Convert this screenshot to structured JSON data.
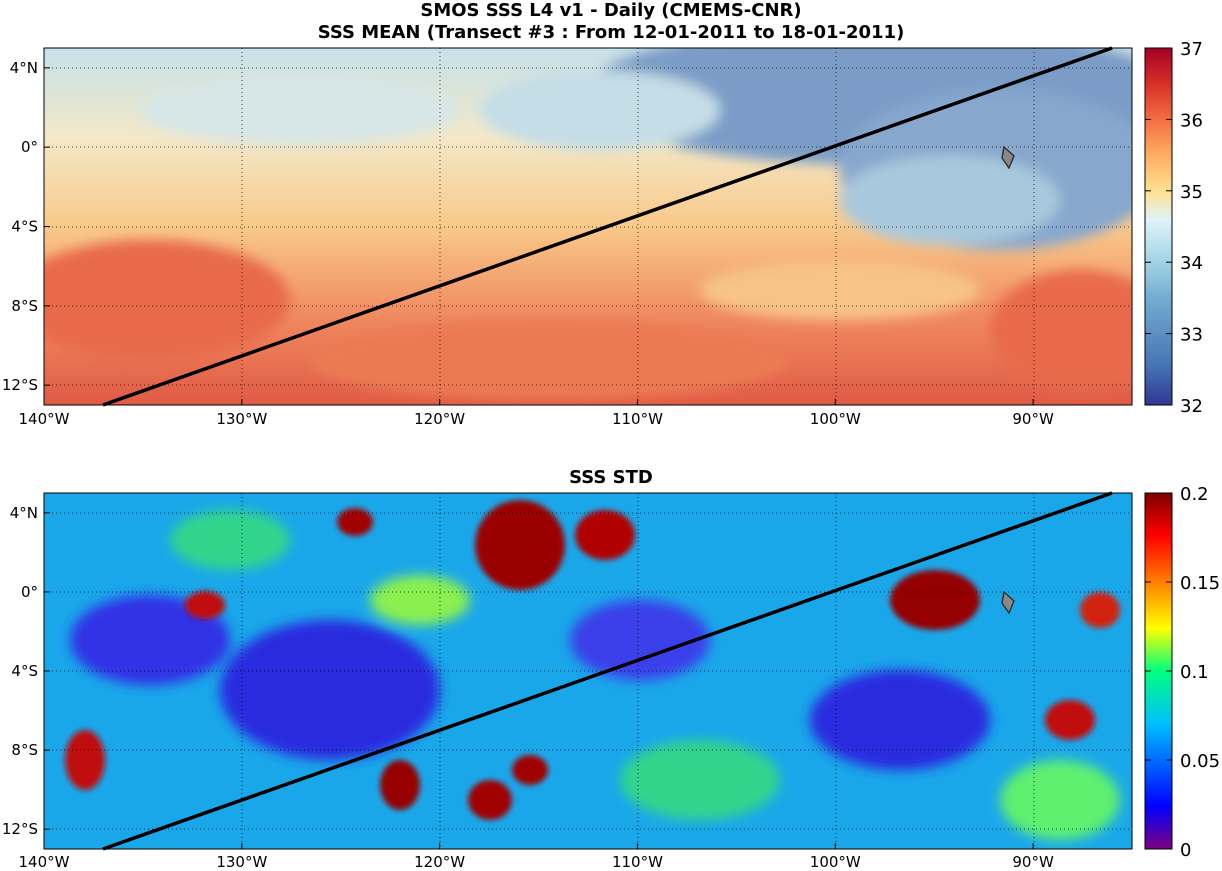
{
  "titles": {
    "line1": "SMOS SSS L4 v1 - Daily (CMEMS-CNR)",
    "line2": "SSS MEAN (Transect #3 : From 12-01-2011 to 18-01-2011)",
    "std_title": "SSS STD"
  },
  "map": {
    "lon_range": [
      -140,
      -85
    ],
    "lat_range": [
      -13,
      5
    ],
    "lon_ticks": [
      {
        "value": -140,
        "label": "140°W"
      },
      {
        "value": -130,
        "label": "130°W"
      },
      {
        "value": -120,
        "label": "120°W"
      },
      {
        "value": -110,
        "label": "110°W"
      },
      {
        "value": -100,
        "label": "100°W"
      },
      {
        "value": -90,
        "label": "90°W"
      }
    ],
    "lat_ticks": [
      {
        "value": 4,
        "label": "4°N"
      },
      {
        "value": 0,
        "label": "0°"
      },
      {
        "value": -4,
        "label": "4°S"
      },
      {
        "value": -8,
        "label": "8°S"
      },
      {
        "value": -12,
        "label": "12°S"
      }
    ],
    "transect": {
      "start": [
        -137,
        -13
      ],
      "end": [
        -86,
        5
      ],
      "color": "#000000"
    },
    "grid": "on"
  },
  "mean_colorbar": {
    "ticks": [
      "32",
      "33",
      "34",
      "35",
      "36",
      "37"
    ],
    "range": [
      32,
      37
    ],
    "palette": [
      "#313695",
      "#4575b4",
      "#74add1",
      "#abd9e9",
      "#e0f3f8",
      "#fee090",
      "#fdae61",
      "#f46d43",
      "#d73027",
      "#a50026"
    ]
  },
  "std_colorbar": {
    "ticks": [
      "0",
      "0.05",
      "0.1",
      "0.15",
      "0.2"
    ],
    "range": [
      0,
      0.2
    ],
    "palette": [
      "#7f007f",
      "#0000ff",
      "#00bfff",
      "#00ff7f",
      "#ffff00",
      "#ff7f00",
      "#ff0000",
      "#7f0000"
    ]
  }
}
